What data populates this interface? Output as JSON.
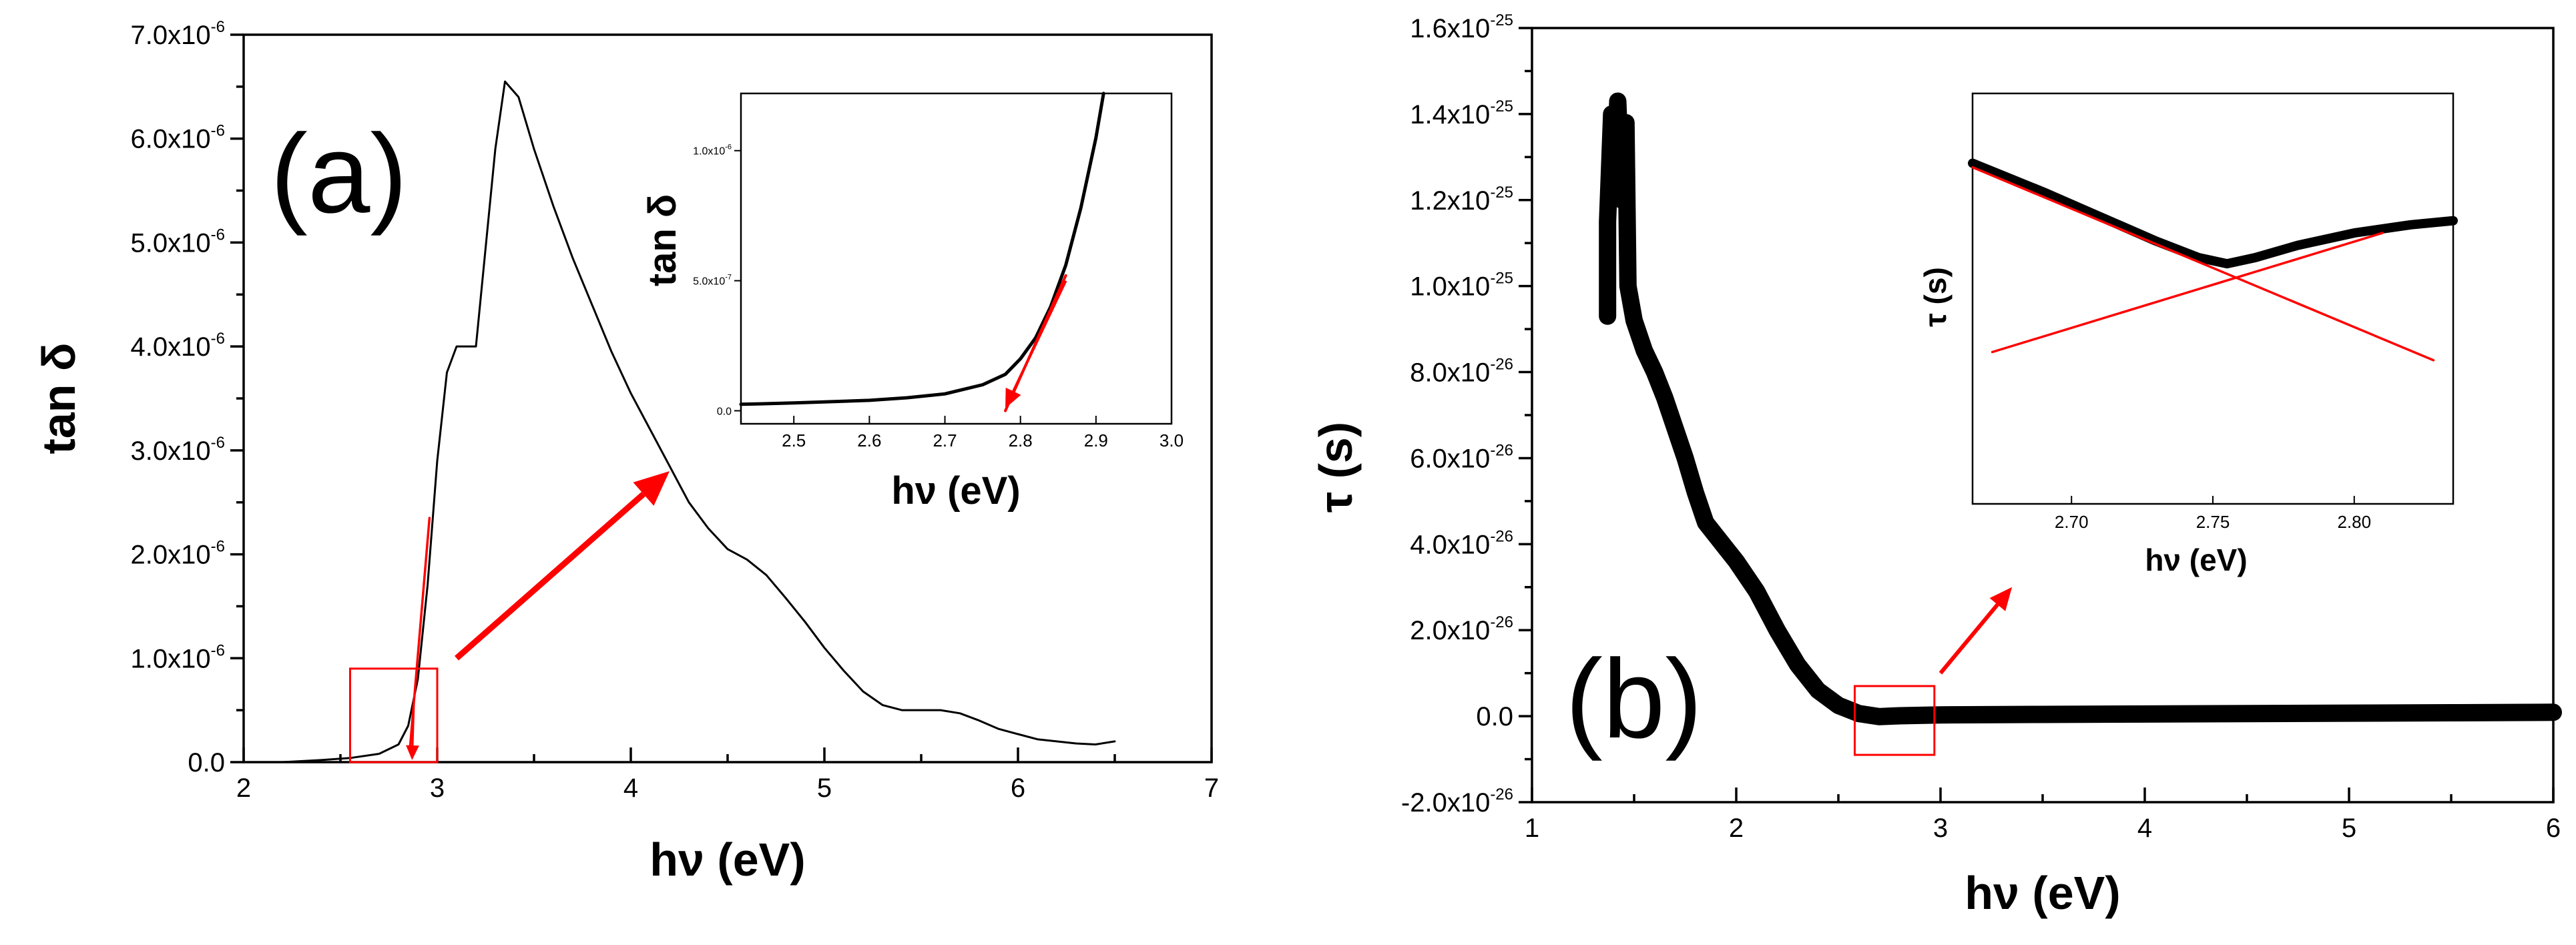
{
  "chart_data": [
    {
      "type": "line",
      "panel_label": "(a)",
      "xlabel": "hν (eV)",
      "ylabel": "tan δ",
      "xlim": [
        2,
        7
      ],
      "ylim": [
        0,
        7e-06
      ],
      "x_ticks": [
        2,
        3,
        4,
        5,
        6,
        7
      ],
      "x_tick_labels": [
        "2",
        "3",
        "4",
        "5",
        "6",
        "7"
      ],
      "y_ticks": [
        0,
        1e-06,
        2e-06,
        3e-06,
        4e-06,
        5e-06,
        6e-06,
        7e-06
      ],
      "y_tick_mantissas": [
        "0.0",
        "1.0x10",
        "2.0x10",
        "3.0x10",
        "4.0x10",
        "5.0x10",
        "6.0x10",
        "7.0x10"
      ],
      "y_tick_exponents": [
        "",
        "-6",
        "-6",
        "-6",
        "-6",
        "-6",
        "-6",
        "-6"
      ],
      "series": [
        {
          "name": "tan δ",
          "color": "#000000",
          "x": [
            2.2,
            2.4,
            2.55,
            2.7,
            2.8,
            2.85,
            2.9,
            2.95,
            3.0,
            3.05,
            3.1,
            3.2,
            3.3,
            3.35,
            3.42,
            3.5,
            3.6,
            3.7,
            3.8,
            3.9,
            4.0,
            4.1,
            4.2,
            4.3,
            4.4,
            4.5,
            4.6,
            4.7,
            4.8,
            4.9,
            5.0,
            5.1,
            5.2,
            5.3,
            5.4,
            5.5,
            5.6,
            5.7,
            5.8,
            5.9,
            6.0,
            6.1,
            6.2,
            6.3,
            6.4,
            6.5
          ],
          "y": [
            0,
            2e-08,
            4e-08,
            8e-08,
            1.7e-07,
            3.5e-07,
            8e-07,
            1.7e-06,
            2.9e-06,
            3.75e-06,
            4e-06,
            4e-06,
            5.9e-06,
            6.55e-06,
            6.4e-06,
            5.9e-06,
            5.35e-06,
            4.85e-06,
            4.4e-06,
            3.95e-06,
            3.55e-06,
            3.2e-06,
            2.85e-06,
            2.5e-06,
            2.25e-06,
            2.05e-06,
            1.95e-06,
            1.8e-06,
            1.58e-06,
            1.35e-06,
            1.1e-06,
            8.8e-07,
            6.8e-07,
            5.5e-07,
            5e-07,
            5e-07,
            5e-07,
            4.7e-07,
            4e-07,
            3.2e-07,
            2.7e-07,
            2.2e-07,
            2e-07,
            1.8e-07,
            1.7e-07,
            2e-07
          ]
        },
        {
          "name": "linear fit",
          "color": "#ff0000",
          "x": [
            2.86,
            2.96
          ],
          "y": [
            1.5e-07,
            2.35e-06
          ]
        }
      ],
      "annotations": {
        "zoom_box": {
          "x": [
            2.55,
            3.0
          ],
          "y": [
            0,
            9e-07
          ],
          "color": "#ff0000"
        },
        "drop_arrow": {
          "from": [
            2.88,
            6e-07
          ],
          "to": [
            2.87,
            2e-08
          ],
          "color": "#ff0000"
        },
        "zoom_arrow": {
          "from": [
            3.1,
            1e-06
          ],
          "to": [
            4.2,
            2.8e-06
          ],
          "color": "#ff0000"
        }
      },
      "inset": {
        "xlabel": "hν (eV)",
        "ylabel": "tan δ",
        "xlim": [
          2.43,
          3.0
        ],
        "ylim": [
          -5e-08,
          1.22e-06
        ],
        "x_ticks": [
          2.5,
          2.6,
          2.7,
          2.8,
          2.9,
          3.0
        ],
        "x_tick_labels": [
          "2.5",
          "2.6",
          "2.7",
          "2.8",
          "2.9",
          "3.0"
        ],
        "y_ticks": [
          0,
          5e-07,
          1e-06
        ],
        "y_tick_mantissas": [
          "0.0",
          "5.0x10",
          "1.0x10"
        ],
        "y_tick_exponents": [
          "",
          "-7",
          "-6"
        ],
        "series": [
          {
            "name": "tan δ",
            "color": "#000000",
            "x": [
              2.43,
              2.5,
              2.6,
              2.65,
              2.7,
              2.75,
              2.78,
              2.8,
              2.82,
              2.84,
              2.86,
              2.88,
              2.9,
              2.91
            ],
            "y": [
              2.5e-08,
              3e-08,
              4e-08,
              5e-08,
              6.5e-08,
              1e-07,
              1.4e-07,
              2e-07,
              2.8e-07,
              4e-07,
              5.6e-07,
              7.8e-07,
              1.05e-06,
              1.22e-06
            ]
          },
          {
            "name": "linear fit",
            "color": "#ff0000",
            "x": [
              2.78,
              2.86
            ],
            "y": [
              0.0,
              5.2e-07
            ]
          }
        ],
        "annotations": {
          "arrow": {
            "from": [
              2.86,
              5e-07
            ],
            "to": [
              2.78,
              1e-08
            ],
            "color": "#ff0000"
          }
        }
      }
    },
    {
      "type": "line",
      "panel_label": "(b)",
      "xlabel": "hν (eV)",
      "ylabel": "τ (s)",
      "xlim": [
        1,
        6
      ],
      "ylim": [
        -2e-26,
        1.6e-25
      ],
      "x_ticks": [
        1,
        2,
        3,
        4,
        5,
        6
      ],
      "x_tick_labels": [
        "1",
        "2",
        "3",
        "4",
        "5",
        "6"
      ],
      "y_ticks": [
        -2e-26,
        0,
        2e-26,
        4e-26,
        6e-26,
        8e-26,
        1e-25,
        1.2e-25,
        1.4e-25,
        1.6e-25
      ],
      "y_tick_mantissas": [
        "-2.0x10",
        "0.0",
        "2.0x10",
        "4.0x10",
        "6.0x10",
        "8.0x10",
        "1.0x10",
        "1.2x10",
        "1.4x10",
        "1.6x10"
      ],
      "y_tick_exponents": [
        "-26",
        "",
        "-26",
        "-26",
        "-26",
        "-26",
        "-25",
        "-25",
        "-25",
        "-25"
      ],
      "series": [
        {
          "name": "τ",
          "color": "#000000",
          "x": [
            1.37,
            1.37,
            1.39,
            1.41,
            1.42,
            1.44,
            1.46,
            1.47,
            1.5,
            1.55,
            1.6,
            1.65,
            1.7,
            1.75,
            1.8,
            1.85,
            1.9,
            1.95,
            2.0,
            2.1,
            2.2,
            2.3,
            2.4,
            2.5,
            2.6,
            2.7,
            2.75,
            2.8,
            3.0,
            3.5,
            4.0,
            4.5,
            5.0,
            5.5,
            6.0
          ],
          "y": [
            9.3e-26,
            1.15e-25,
            1.4e-25,
            1.3e-25,
            1.43e-25,
            1.2e-25,
            1.38e-25,
            1e-25,
            9.2e-26,
            8.5e-26,
            8e-26,
            7.4e-26,
            6.7e-26,
            6e-26,
            5.2e-26,
            4.5e-26,
            4.2e-26,
            3.9e-26,
            3.6e-26,
            2.9e-26,
            2e-26,
            1.2e-26,
            6e-27,
            2.5e-27,
            6e-28,
            -1e-28,
            0.0,
            1e-28,
            3e-28,
            4e-28,
            5e-28,
            6e-28,
            7e-28,
            8e-28,
            9e-28
          ]
        }
      ],
      "annotations": {
        "zoom_box": {
          "x": [
            2.58,
            2.97
          ],
          "y": [
            -9e-27,
            7e-27
          ],
          "color": "#ff0000"
        },
        "zoom_arrow": {
          "from": [
            3.0,
            1e-26
          ],
          "to": [
            3.35,
            3e-26
          ],
          "color": "#ff0000"
        }
      },
      "inset": {
        "xlabel": "hν (eV)",
        "ylabel": "τ (s)",
        "xlim": [
          2.665,
          2.835
        ],
        "ylim": [
          0,
          1
        ],
        "x_ticks": [
          2.7,
          2.75,
          2.8
        ],
        "x_tick_labels": [
          "2.70",
          "2.75",
          "2.80"
        ],
        "series": [
          {
            "name": "τ",
            "color": "#000000",
            "x": [
              2.665,
              2.69,
              2.71,
              2.73,
              2.745,
              2.755,
              2.765,
              2.78,
              2.8,
              2.82,
              2.835
            ],
            "y": [
              0.83,
              0.76,
              0.7,
              0.64,
              0.6,
              0.585,
              0.6,
              0.63,
              0.66,
              0.68,
              0.69
            ]
          },
          {
            "name": "fit 1",
            "color": "#ff0000",
            "x": [
              2.665,
              2.828
            ],
            "y": [
              0.82,
              0.35
            ]
          },
          {
            "name": "fit 2",
            "color": "#ff0000",
            "x": [
              2.672,
              2.81
            ],
            "y": [
              0.37,
              0.66
            ]
          }
        ]
      }
    }
  ]
}
